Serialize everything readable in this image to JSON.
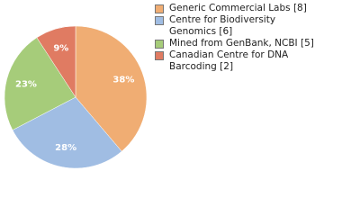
{
  "chart_data": {
    "type": "pie",
    "categories": [
      "Generic Commercial Labs [8]",
      "Centre for Biodiversity Genomics [6]",
      "Mined from GenBank, NCBI [5]",
      "Canadian Centre for DNA Barcoding [2]"
    ],
    "values": [
      38,
      28,
      23,
      9
    ],
    "value_labels": [
      "38%",
      "28%",
      "23%",
      "9%"
    ],
    "colors": [
      "#f0ad73",
      "#a0bde3",
      "#a6cc7a",
      "#e07b62"
    ]
  }
}
